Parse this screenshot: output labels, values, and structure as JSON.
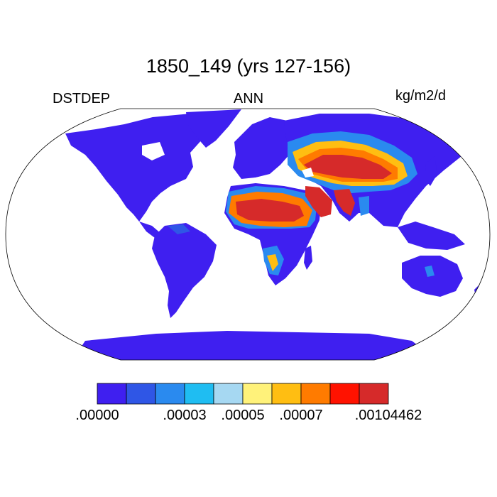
{
  "title": "1850_149 (yrs 127-156)",
  "left_label": "DSTDEP",
  "center_label": "ANN",
  "right_label": "kg/m2/d",
  "colorbar": {
    "colors": [
      "#3f1ff0",
      "#2f56e6",
      "#2a8aef",
      "#1fbdf2",
      "#a6d8f2",
      "#fff27a",
      "#ffbe12",
      "#ff7b00",
      "#ff1200",
      "#d62a2a"
    ],
    "tick_labels": [
      ".00000",
      ".00003",
      ".00005",
      ".00007",
      ".00104462"
    ]
  },
  "colors": {
    "land_low": "#3f1ff0",
    "ocean": "#ffffff",
    "outline": "#000000"
  }
}
